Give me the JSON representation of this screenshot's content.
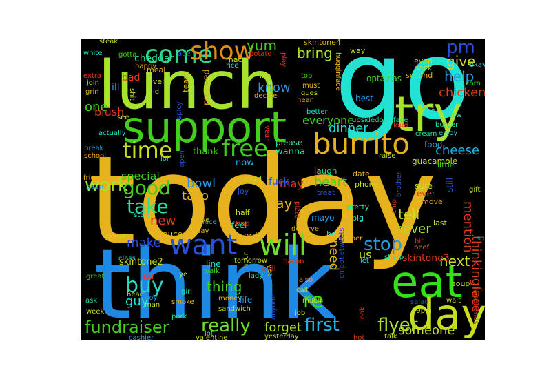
{
  "words": [
    {
      "text": "today",
      "size": "xl",
      "color": "#e6b21e"
    },
    {
      "text": "think",
      "size": "xl",
      "color": "#1e88e5"
    },
    {
      "text": "go",
      "size": "xl",
      "color": "#22e2d2"
    },
    {
      "text": "lunch",
      "size": "xl",
      "color": "#a6e22e"
    },
    {
      "text": "support",
      "size": "l",
      "color": "#43d01c"
    },
    {
      "text": "try",
      "size": "l",
      "color": "#a6e22e"
    },
    {
      "text": "eat",
      "size": "l",
      "color": "#33e01a"
    },
    {
      "text": "day",
      "size": "l",
      "color": "#c7de21"
    },
    {
      "text": "burrito",
      "size": "m",
      "color": "#e6b21e"
    },
    {
      "text": "want",
      "size": "m",
      "color": "#2a4fd8"
    },
    {
      "text": "will",
      "size": "m",
      "color": "#6de02a"
    },
    {
      "text": "come",
      "size": "m",
      "color": "#2ad88a"
    },
    {
      "text": "show",
      "size": "m",
      "color": "#e08a1a"
    },
    {
      "text": "free",
      "size": "m",
      "color": "#43d01c"
    },
    {
      "text": "time",
      "size": "m",
      "color": "#c7de21"
    },
    {
      "text": "work",
      "size": "m",
      "color": "#a6e22e"
    },
    {
      "text": "good",
      "size": "m",
      "color": "#43d01c"
    },
    {
      "text": "take",
      "size": "m",
      "color": "#22e2a2"
    },
    {
      "text": "buy",
      "size": "m",
      "color": "#2ad8c2"
    },
    {
      "text": "fundraiser",
      "size": "m",
      "color": "#43d01c"
    },
    {
      "text": "really",
      "size": "m",
      "color": "#6de02a"
    },
    {
      "text": "first",
      "size": "m",
      "color": "#22b2e2"
    },
    {
      "text": "flyer",
      "size": "m",
      "color": "#a6e22e"
    },
    {
      "text": "stop",
      "size": "m",
      "color": "#2a98e0"
    },
    {
      "text": "re",
      "size": "m",
      "color": "#33e01a"
    },
    {
      "text": "pm",
      "size": "s",
      "color": "#2a4fd8"
    },
    {
      "text": "yum",
      "size": "s",
      "color": "#43d01c"
    },
    {
      "text": "bring",
      "size": "s",
      "color": "#a6e22e"
    },
    {
      "text": "give",
      "size": "s",
      "color": "#c7de21"
    },
    {
      "text": "help",
      "size": "s",
      "color": "#2a98e0"
    },
    {
      "text": "chicken",
      "size": "s",
      "color": "#e03a1a"
    },
    {
      "text": "know",
      "size": "s",
      "color": "#2a98e0"
    },
    {
      "text": "everyone",
      "size": "s",
      "color": "#43d01c"
    },
    {
      "text": "dinner",
      "size": "s",
      "color": "#22e2d2"
    },
    {
      "text": "cheese",
      "size": "s",
      "color": "#22b2e2"
    },
    {
      "text": "one",
      "size": "s",
      "color": "#43d01c"
    },
    {
      "text": "blush",
      "size": "s",
      "color": "#e03a1a"
    },
    {
      "text": "bowl",
      "size": "s",
      "color": "#2a98e0"
    },
    {
      "text": "taco",
      "size": "s",
      "color": "#e6b21e"
    },
    {
      "text": "heart",
      "size": "s",
      "color": "#43d01c"
    },
    {
      "text": "say",
      "size": "s",
      "color": "#e6b21e"
    },
    {
      "text": "tell",
      "size": "s",
      "color": "#c7de21"
    },
    {
      "text": "never",
      "size": "s",
      "color": "#a6e22e"
    },
    {
      "text": "mention",
      "size": "s",
      "color": "#e03a1a"
    },
    {
      "text": "next",
      "size": "s",
      "color": "#c7de21"
    },
    {
      "text": "thinkingface",
      "size": "s",
      "color": "#e03a1a"
    },
    {
      "text": "someone",
      "size": "s",
      "color": "#c7de21"
    },
    {
      "text": "new",
      "size": "s",
      "color": "#e03a1a"
    },
    {
      "text": "make",
      "size": "s",
      "color": "#2a4fd8"
    },
    {
      "text": "need",
      "size": "s",
      "color": "#e6b21e"
    },
    {
      "text": "thing",
      "size": "s",
      "color": "#43d01c"
    },
    {
      "text": "guy",
      "size": "s",
      "color": "#22e2d2"
    },
    {
      "text": "forget",
      "size": "s",
      "color": "#a6e22e"
    },
    {
      "text": "special",
      "size": "s",
      "color": "#43d01c"
    },
    {
      "text": "may",
      "size": "s",
      "color": "#e03a1a"
    },
    {
      "text": "fuck",
      "size": "s",
      "color": "#2a4fd8"
    },
    {
      "text": "cheddar",
      "size": "s",
      "color": "#22e2a2"
    },
    {
      "text": "bad",
      "size": "s",
      "color": "#e03a1a"
    },
    {
      "text": "ill",
      "size": "s",
      "color": "#2a98e0"
    },
    {
      "text": "us",
      "size": "s",
      "color": "#c7de21"
    },
    {
      "text": "skintone3",
      "size": "xs",
      "color": "#e03a1a"
    },
    {
      "text": "skintone2",
      "size": "xs",
      "color": "#c7de21"
    },
    {
      "text": "skintone4",
      "size": "xs",
      "color": "#e6b21e"
    },
    {
      "text": "sauce",
      "size": "xs",
      "color": "#e6b21e"
    },
    {
      "text": "order",
      "size": "xs",
      "color": "#e6b21e"
    },
    {
      "text": "feel",
      "size": "xs",
      "color": "#22e2a2"
    },
    {
      "text": "now",
      "size": "xs",
      "color": "#22b2e2"
    },
    {
      "text": "thank",
      "size": "xs",
      "color": "#43d01c"
    },
    {
      "text": "wanna",
      "size": "xs",
      "color": "#22e2a2"
    },
    {
      "text": "please",
      "size": "xs",
      "color": "#22e2a2"
    },
    {
      "text": "laugh",
      "size": "xs",
      "color": "#22e2a2"
    },
    {
      "text": "card",
      "size": "xs",
      "color": "#c7de21"
    },
    {
      "text": "joy",
      "size": "xs",
      "color": "#2a4fd8"
    },
    {
      "text": "find",
      "size": "xs",
      "color": "#e03a1a"
    },
    {
      "text": "half",
      "size": "xs",
      "color": "#c7de21"
    },
    {
      "text": "mayo",
      "size": "xs",
      "color": "#2a98e0"
    },
    {
      "text": "treat",
      "size": "xs",
      "color": "#2a4fd8"
    },
    {
      "text": "date",
      "size": "xs",
      "color": "#e6b21e"
    },
    {
      "text": "phone",
      "size": "xs",
      "color": "#c7de21"
    },
    {
      "text": "pretty",
      "size": "xs",
      "color": "#22e2a2"
    },
    {
      "text": "big",
      "size": "xs",
      "color": "#22e2d2"
    },
    {
      "text": "sure",
      "size": "xs",
      "color": "#c7de21"
    },
    {
      "text": "ever",
      "size": "xs",
      "color": "#e03a1a"
    },
    {
      "text": "move",
      "size": "xs",
      "color": "#e08a1a"
    },
    {
      "text": "last",
      "size": "xs",
      "color": "#c7de21"
    },
    {
      "text": "still",
      "size": "xs",
      "color": "#2a4fd8"
    },
    {
      "text": "guacamole",
      "size": "xs",
      "color": "#c7de21"
    },
    {
      "text": "little",
      "size": "xs",
      "color": "#43d01c"
    },
    {
      "text": "food",
      "size": "xs",
      "color": "#2a98e0"
    },
    {
      "text": "cream",
      "size": "xs",
      "color": "#22e2a2"
    },
    {
      "text": "enjoy",
      "size": "xs",
      "color": "#22e2d2"
    },
    {
      "text": "burger",
      "size": "xs",
      "color": "#22e2a2"
    },
    {
      "text": "saw",
      "size": "xs",
      "color": "#22e2d2"
    },
    {
      "text": "fire",
      "size": "xs",
      "color": "#22e2d2"
    },
    {
      "text": "corn",
      "size": "xs",
      "color": "#43d01c"
    },
    {
      "text": "okay",
      "size": "xs",
      "color": "#22e2d2"
    },
    {
      "text": "second",
      "size": "xs",
      "color": "#e6b21e"
    },
    {
      "text": "back",
      "size": "xs",
      "color": "#c7de21"
    },
    {
      "text": "even",
      "size": "xs",
      "color": "#c7de21"
    },
    {
      "text": "optavias",
      "size": "xs",
      "color": "#43d01c"
    },
    {
      "text": "best",
      "size": "xs",
      "color": "#2a98e0"
    },
    {
      "text": "upsidedownface",
      "size": "xs",
      "color": "#22e2a2"
    },
    {
      "text": "loud",
      "size": "xs",
      "color": "#e03a1a"
    },
    {
      "text": "way",
      "size": "xs",
      "color": "#c7de21"
    },
    {
      "text": "top",
      "size": "xs",
      "color": "#43d01c"
    },
    {
      "text": "must",
      "size": "xs",
      "color": "#e6b21e"
    },
    {
      "text": "gues",
      "size": "xs",
      "color": "#c7de21"
    },
    {
      "text": "hear",
      "size": "xs",
      "color": "#e6b21e"
    },
    {
      "text": "better",
      "size": "xs",
      "color": "#22e2d2"
    },
    {
      "text": "hugginface",
      "size": "xs",
      "color": "#e6b21e"
    },
    {
      "text": "win",
      "size": "xs",
      "color": "#c7de21"
    },
    {
      "text": "decide",
      "size": "xs",
      "color": "#e6b21e"
    },
    {
      "text": "mac",
      "size": "xs",
      "color": "#c7de21"
    },
    {
      "text": "rice",
      "size": "xs",
      "color": "#22e2d2"
    },
    {
      "text": "potato",
      "size": "xs",
      "color": "#e03a1a"
    },
    {
      "text": "play",
      "size": "xs",
      "color": "#e03a1a"
    },
    {
      "text": "age",
      "size": "xs",
      "color": "#2a4fd8"
    },
    {
      "text": "team",
      "size": "xs",
      "color": "#e6b21e"
    },
    {
      "text": "proceed",
      "size": "xs",
      "color": "#e6b21e"
    },
    {
      "text": "level",
      "size": "xs",
      "color": "#c7de21"
    },
    {
      "text": "meal",
      "size": "xs",
      "color": "#e6b21e"
    },
    {
      "text": "happy",
      "size": "xs",
      "color": "#e6b21e"
    },
    {
      "text": "gotta",
      "size": "xs",
      "color": "#43d01c"
    },
    {
      "text": "steak",
      "size": "xs",
      "color": "#c7de21"
    },
    {
      "text": "white",
      "size": "xs",
      "color": "#22e2d2"
    },
    {
      "text": "sob",
      "size": "xs",
      "color": "#22b2e2"
    },
    {
      "text": "extra",
      "size": "xs",
      "color": "#e03a1a"
    },
    {
      "text": "join",
      "size": "xs",
      "color": "#c7de21"
    },
    {
      "text": "grin",
      "size": "xs",
      "color": "#e6b21e"
    },
    {
      "text": "id",
      "size": "xs",
      "color": "#c7de21"
    },
    {
      "text": "shit",
      "size": "xs",
      "color": "#c7de21"
    },
    {
      "text": "spicy",
      "size": "xs",
      "color": "#2a4fd8"
    },
    {
      "text": "see",
      "size": "xs",
      "color": "#c7de21"
    },
    {
      "text": "actually",
      "size": "xs",
      "color": "#22e2d2"
    },
    {
      "text": "break",
      "size": "xs",
      "color": "#2a98e0"
    },
    {
      "text": "school",
      "size": "xs",
      "color": "#e6b21e"
    },
    {
      "text": "friend",
      "size": "xs",
      "color": "#e6b21e"
    },
    {
      "text": "bean",
      "size": "xs",
      "color": "#22b2e2"
    },
    {
      "text": "lol",
      "size": "xs",
      "color": "#22e2d2"
    },
    {
      "text": "open",
      "size": "xs",
      "color": "#2a4fd8"
    },
    {
      "text": "year",
      "size": "xs",
      "color": "#e03a1a"
    },
    {
      "text": "raise",
      "size": "xs",
      "color": "#c7de21"
    },
    {
      "text": "brother",
      "size": "xs",
      "color": "#2a4fd8"
    },
    {
      "text": "chip",
      "size": "xs",
      "color": "#e03a1a"
    },
    {
      "text": "start",
      "size": "xs",
      "color": "#22e2d2"
    },
    {
      "text": "pay",
      "size": "xs",
      "color": "#e6b21e"
    },
    {
      "text": "serve",
      "size": "xs",
      "color": "#e6b21e"
    },
    {
      "text": "nice",
      "size": "xs",
      "color": "#22b2e2"
    },
    {
      "text": "deserve",
      "size": "xs",
      "color": "#e6b21e"
    },
    {
      "text": "pizza",
      "size": "xs",
      "color": "#e03a1a"
    },
    {
      "text": "gift",
      "size": "xs",
      "color": "#c7de21"
    },
    {
      "text": "donate",
      "size": "xs",
      "color": "#c7de21"
    },
    {
      "text": "class",
      "size": "xs",
      "color": "#22e2d2"
    },
    {
      "text": "hour",
      "size": "xs",
      "color": "#c7de21"
    },
    {
      "text": "bc",
      "size": "xs",
      "color": "#22e2d2"
    },
    {
      "text": "remember",
      "size": "xs",
      "color": "#e6b21e"
    },
    {
      "text": "let",
      "size": "xs",
      "color": "#22e2d2"
    },
    {
      "text": "sharp",
      "size": "xs",
      "color": "#22e2a2"
    },
    {
      "text": "hit",
      "size": "xs",
      "color": "#e03a1a"
    },
    {
      "text": "beef",
      "size": "xs",
      "color": "#e08a1a"
    },
    {
      "text": "line",
      "size": "xs",
      "color": "#22e2d2"
    },
    {
      "text": "tomorrow",
      "size": "xs",
      "color": "#c7de21"
    },
    {
      "text": "grill",
      "size": "xs",
      "color": "#e03a1a"
    },
    {
      "text": "bacon",
      "size": "xs",
      "color": "#e03a1a"
    },
    {
      "text": "great",
      "size": "xs",
      "color": "#43d01c"
    },
    {
      "text": "walk",
      "size": "xs",
      "color": "#43d01c"
    },
    {
      "text": "lady",
      "size": "xs",
      "color": "#22e2a2"
    },
    {
      "text": "also",
      "size": "xs",
      "color": "#e6b21e"
    },
    {
      "text": "kid",
      "size": "xs",
      "color": "#e03a1a"
    },
    {
      "text": "ye",
      "size": "xs",
      "color": "#c7de21"
    },
    {
      "text": "girl",
      "size": "xs",
      "color": "#22e2a2"
    },
    {
      "text": "money",
      "size": "xs",
      "color": "#e6b21e"
    },
    {
      "text": "life",
      "size": "xs",
      "color": "#2a98e0"
    },
    {
      "text": "yet",
      "size": "xs",
      "color": "#e6b21e"
    },
    {
      "text": "call",
      "size": "xs",
      "color": "#c7de21"
    },
    {
      "text": "chipotletweets",
      "size": "xs",
      "color": "#2a4fd8"
    },
    {
      "text": "salad",
      "size": "xs",
      "color": "#2a4fd8"
    },
    {
      "text": "soup",
      "size": "xs",
      "color": "#c7de21"
    },
    {
      "text": "head",
      "size": "xs",
      "color": "#c7de21"
    },
    {
      "text": "boy",
      "size": "xs",
      "color": "#2a98e0"
    },
    {
      "text": "ask",
      "size": "xs",
      "color": "#22e2a2"
    },
    {
      "text": "smoke",
      "size": "xs",
      "color": "#e6b21e"
    },
    {
      "text": "sandwich",
      "size": "xs",
      "color": "#c7de21"
    },
    {
      "text": "job",
      "size": "xs",
      "color": "#c7de21"
    },
    {
      "text": "look",
      "size": "xs",
      "color": "#e03a1a"
    },
    {
      "text": "59pm",
      "size": "xs",
      "color": "#c7de21"
    },
    {
      "text": "wait",
      "size": "xs",
      "color": "#c7de21"
    },
    {
      "text": "raisehands",
      "size": "xs",
      "color": "#e03a1a"
    },
    {
      "text": "week",
      "size": "xs",
      "color": "#c7de21"
    },
    {
      "text": "pork",
      "size": "xs",
      "color": "#22e2a2"
    },
    {
      "text": "much",
      "size": "xs",
      "color": "#c7de21"
    },
    {
      "text": "anyone",
      "size": "xs",
      "color": "#2a4fd8"
    },
    {
      "text": "man",
      "size": "xs",
      "color": "#c7de21"
    },
    {
      "text": "cashier",
      "size": "xs",
      "color": "#2a98e0"
    },
    {
      "text": "lot",
      "size": "xs",
      "color": "#22e2d2"
    },
    {
      "text": "valentine",
      "size": "xs",
      "color": "#c7de21"
    },
    {
      "text": "yesterday",
      "size": "xs",
      "color": "#c7de21"
    },
    {
      "text": "hot",
      "size": "xs",
      "color": "#e03a1a"
    },
    {
      "text": "talk",
      "size": "xs",
      "color": "#c7de21"
    }
  ]
}
